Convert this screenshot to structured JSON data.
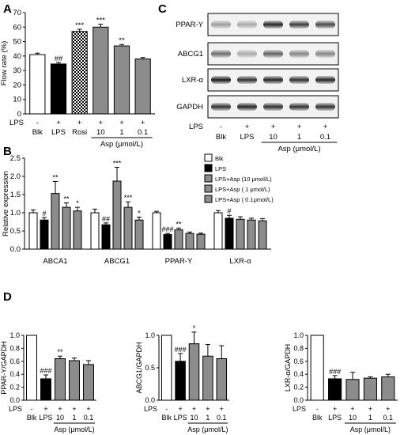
{
  "panel_labels": [
    "A",
    "B",
    "C",
    "D"
  ],
  "chart_data": [
    {
      "id": "A",
      "type": "bar",
      "ylabel": "Flow rate (%)",
      "ylim": [
        0,
        70
      ],
      "yticks": [
        0,
        10,
        20,
        30,
        40,
        50,
        60,
        70
      ],
      "categories": [
        "Blk",
        "LPS",
        "Rosi",
        "10",
        "1",
        "0.1"
      ],
      "lps_row": [
        "-",
        "+",
        "+",
        "+",
        "+",
        "+"
      ],
      "lps_label": "LPS",
      "group_label": "Asp (μmol/L)",
      "values": [
        41,
        34.5,
        57,
        60,
        47,
        38
      ],
      "errors": [
        1,
        1,
        1.5,
        2,
        1,
        1
      ],
      "fills": [
        "white",
        "black",
        "check",
        "gray",
        "gray",
        "gray"
      ],
      "annotations": [
        "",
        "##",
        "***",
        "***",
        "**",
        ""
      ]
    },
    {
      "id": "B",
      "type": "bar",
      "ylabel": "Relative expression",
      "ylim": [
        0,
        2.5
      ],
      "yticks": [
        0.0,
        0.5,
        1.0,
        1.5,
        2.0,
        2.5
      ],
      "categories": [
        "ABCA1",
        "ABCG1",
        "PPAR-Υ",
        "LXR-α"
      ],
      "series": [
        {
          "name": "Blk",
          "values": [
            1.0,
            1.0,
            1.0,
            1.0
          ],
          "errors": [
            0.08,
            0.1,
            0.04,
            0.06
          ],
          "fill": "white",
          "annotations": [
            "",
            "",
            "",
            ""
          ]
        },
        {
          "name": "LPS",
          "values": [
            0.8,
            0.67,
            0.4,
            0.85
          ],
          "errors": [
            0.07,
            0.05,
            0.03,
            0.08
          ],
          "fill": "black",
          "annotations": [
            "#",
            "##",
            "###",
            "#"
          ]
        },
        {
          "name": "LPS+Asp (10  μmol/L)",
          "values": [
            1.53,
            1.87,
            0.53,
            0.82
          ],
          "errors": [
            0.33,
            0.38,
            0.05,
            0.07
          ],
          "fill": "gray",
          "annotations": [
            "**",
            "***",
            "**",
            ""
          ]
        },
        {
          "name": "LPS+Asp ( 1  μmol/L)",
          "values": [
            1.15,
            1.15,
            0.43,
            0.8
          ],
          "errors": [
            0.12,
            0.15,
            0.04,
            0.05
          ],
          "fill": "gray",
          "annotations": [
            "**",
            "***",
            "",
            ""
          ]
        },
        {
          "name": "LPS+Asp ( 0.1μmol/L)",
          "values": [
            1.05,
            0.8,
            0.41,
            0.78
          ],
          "errors": [
            0.1,
            0.08,
            0.03,
            0.06
          ],
          "fill": "gray",
          "annotations": [
            "*",
            "*",
            "",
            ""
          ]
        }
      ]
    },
    {
      "id": "D1",
      "type": "bar",
      "ylabel": "PPAR-Υ/GAPDH",
      "ylim": [
        0,
        1.0
      ],
      "yticks": [
        0.0,
        0.2,
        0.4,
        0.6,
        0.8,
        1.0
      ],
      "categories": [
        "Blk",
        "LPS",
        "10",
        "1",
        "0.1"
      ],
      "lps_row": [
        "-",
        "+",
        "+",
        "+",
        "+"
      ],
      "lps_label": "LPS",
      "group_label": "Asp (μmol/L)",
      "values": [
        1.0,
        0.33,
        0.64,
        0.61,
        0.55
      ],
      "errors": [
        0,
        0.06,
        0.04,
        0.04,
        0.06
      ],
      "fills": [
        "white",
        "black",
        "gray",
        "gray",
        "gray"
      ],
      "annotations": [
        "",
        "###",
        "**",
        "",
        ""
      ]
    },
    {
      "id": "D2",
      "type": "bar",
      "ylabel": "ABCG1/GAPDH",
      "ylim": [
        0,
        1.0
      ],
      "yticks": [
        0.0,
        0.5,
        1.0
      ],
      "categories": [
        "Blk",
        "LPS",
        "10",
        "1",
        "0.1"
      ],
      "lps_row": [
        "-",
        "+",
        "+",
        "+",
        "+"
      ],
      "lps_label": "LPS",
      "group_label": "Asp (μmol/L)",
      "values": [
        1.0,
        0.6,
        0.87,
        0.68,
        0.64
      ],
      "errors": [
        0,
        0.12,
        0.18,
        0.18,
        0.2
      ],
      "fills": [
        "white",
        "black",
        "gray",
        "gray",
        "gray"
      ],
      "annotations": [
        "",
        "###",
        "*",
        "",
        ""
      ]
    },
    {
      "id": "D3",
      "type": "bar",
      "ylabel": "LXR-α/GAPDH",
      "ylim": [
        0,
        1.0
      ],
      "yticks": [
        0.0,
        0.2,
        0.4,
        0.6,
        0.8,
        1.0
      ],
      "categories": [
        "Blk",
        "LPS",
        "10",
        "1",
        "0.1"
      ],
      "lps_row": [
        "-",
        "+",
        "+",
        "+",
        "+"
      ],
      "lps_label": "LPS",
      "group_label": "Asp (μmol/L)",
      "values": [
        1.0,
        0.33,
        0.32,
        0.34,
        0.36
      ],
      "errors": [
        0,
        0.05,
        0.11,
        0.02,
        0.04
      ],
      "fills": [
        "white",
        "black",
        "gray",
        "gray",
        "gray"
      ],
      "annotations": [
        "",
        "###",
        "",
        "",
        ""
      ]
    }
  ],
  "blot": {
    "rows": [
      {
        "label": "PPAR-Υ",
        "intensity": [
          0.35,
          0.3,
          0.85,
          0.75,
          0.7
        ]
      },
      {
        "label": "ABCG1",
        "intensity": [
          0.55,
          0.3,
          0.6,
          0.45,
          0.45
        ]
      },
      {
        "label": "LXR-α",
        "intensity": [
          0.9,
          0.8,
          0.85,
          0.8,
          0.85
        ]
      },
      {
        "label": "GAPDH",
        "intensity": [
          0.8,
          0.85,
          0.8,
          0.8,
          0.8
        ]
      }
    ],
    "lps_label": "LPS",
    "lps_row": [
      "-",
      "+",
      "+",
      "+",
      "+"
    ],
    "lanes": [
      "Blk",
      "LPS",
      "10",
      "1",
      "0.1"
    ],
    "group_label": "Asp (μmol/L)"
  }
}
